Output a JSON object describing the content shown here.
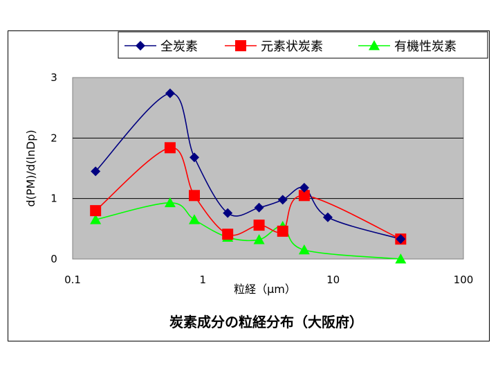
{
  "chart_data": {
    "type": "line",
    "title": "炭素成分の粒経分布（大阪府）",
    "xlabel": "粒経（μm）",
    "ylabel": "d(PM)/d(lnDp)",
    "xscale": "log",
    "xlim": [
      0.1,
      100
    ],
    "ylim": [
      0,
      3
    ],
    "xticks": [
      "0.1",
      "1",
      "10",
      "100"
    ],
    "yticks": [
      "0",
      "1",
      "2",
      "3"
    ],
    "grid": "horizontal major",
    "legend": "top",
    "plot_background": "#c0c0c0",
    "series": [
      {
        "name": "全炭素",
        "color": "#000080",
        "marker": "diamond",
        "x": [
          0.15,
          0.56,
          0.86,
          1.55,
          2.7,
          4.1,
          6.0,
          9.1,
          33
        ],
        "y": [
          1.45,
          2.74,
          1.68,
          0.76,
          0.85,
          0.98,
          1.18,
          0.69,
          0.33
        ]
      },
      {
        "name": "元素状炭素",
        "color": "#ff0000",
        "marker": "square",
        "x": [
          0.15,
          0.56,
          0.86,
          1.55,
          2.7,
          4.1,
          6.0,
          33
        ],
        "y": [
          0.8,
          1.84,
          1.05,
          0.41,
          0.56,
          0.46,
          1.05,
          0.33
        ]
      },
      {
        "name": "有機性炭素",
        "color": "#00ff00",
        "marker": "triangle",
        "x": [
          0.15,
          0.56,
          0.86,
          1.55,
          2.7,
          4.1,
          6.0,
          33
        ],
        "y": [
          0.65,
          0.93,
          0.65,
          0.36,
          0.32,
          0.54,
          0.15,
          0.0
        ]
      }
    ]
  }
}
